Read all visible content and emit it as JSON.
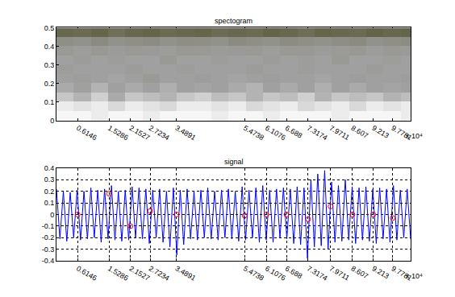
{
  "chart_data": [
    {
      "type": "heatmap",
      "title": "spectogram",
      "x": [
        0.25,
        0.75,
        1.25,
        1.75,
        2.25,
        2.75,
        3.25,
        3.75,
        4.25,
        4.75,
        5.25,
        5.75,
        6.25,
        6.75,
        7.25,
        7.75,
        8.25,
        8.75,
        9.25,
        9.75,
        10.25
      ],
      "y": [
        0.025,
        0.075,
        0.125,
        0.175,
        0.225,
        0.275,
        0.325,
        0.375,
        0.425,
        0.475
      ],
      "z": [
        [
          0.05,
          0.05,
          0.1,
          0.05,
          0.05,
          0.1,
          0.05,
          0.05,
          0.05,
          0.1,
          0.05,
          0.05,
          0.1,
          0.05,
          0.05,
          0.05,
          0.1,
          0.05,
          0.05,
          0.05,
          0.1
        ],
        [
          0.1,
          0.15,
          0.1,
          0.2,
          0.1,
          0.15,
          0.2,
          0.1,
          0.1,
          0.15,
          0.1,
          0.2,
          0.15,
          0.1,
          0.2,
          0.15,
          0.1,
          0.2,
          0.1,
          0.15,
          0.1
        ],
        [
          0.3,
          0.4,
          0.25,
          0.45,
          0.3,
          0.35,
          0.4,
          0.3,
          0.25,
          0.35,
          0.3,
          0.4,
          0.3,
          0.35,
          0.25,
          0.4,
          0.3,
          0.35,
          0.3,
          0.4,
          0.35
        ],
        [
          0.45,
          0.5,
          0.4,
          0.5,
          0.45,
          0.5,
          0.42,
          0.5,
          0.48,
          0.5,
          0.45,
          0.4,
          0.5,
          0.45,
          0.5,
          0.42,
          0.5,
          0.45,
          0.5,
          0.48,
          0.5
        ],
        [
          0.5,
          0.52,
          0.5,
          0.48,
          0.5,
          0.55,
          0.5,
          0.5,
          0.52,
          0.5,
          0.48,
          0.5,
          0.52,
          0.5,
          0.5,
          0.48,
          0.5,
          0.52,
          0.5,
          0.5,
          0.52
        ],
        [
          0.52,
          0.5,
          0.5,
          0.5,
          0.53,
          0.5,
          0.5,
          0.52,
          0.5,
          0.5,
          0.5,
          0.53,
          0.5,
          0.5,
          0.52,
          0.5,
          0.5,
          0.5,
          0.53,
          0.5,
          0.5
        ],
        [
          0.5,
          0.53,
          0.5,
          0.52,
          0.5,
          0.5,
          0.55,
          0.5,
          0.5,
          0.52,
          0.5,
          0.5,
          0.53,
          0.5,
          0.52,
          0.5,
          0.55,
          0.5,
          0.5,
          0.52,
          0.5
        ],
        [
          0.55,
          0.52,
          0.56,
          0.53,
          0.55,
          0.54,
          0.52,
          0.56,
          0.55,
          0.53,
          0.54,
          0.55,
          0.52,
          0.56,
          0.55,
          0.53,
          0.54,
          0.56,
          0.52,
          0.55,
          0.54
        ],
        [
          0.62,
          0.6,
          0.65,
          0.6,
          0.62,
          0.64,
          0.6,
          0.63,
          0.62,
          0.6,
          0.65,
          0.62,
          0.6,
          0.64,
          0.62,
          0.6,
          0.63,
          0.65,
          0.6,
          0.62,
          0.64
        ],
        [
          0.9,
          0.88,
          0.92,
          0.85,
          0.9,
          0.93,
          0.88,
          0.9,
          0.92,
          0.87,
          0.9,
          0.88,
          0.93,
          0.9,
          0.86,
          0.92,
          0.9,
          0.88,
          0.93,
          0.9,
          0.92
        ]
      ],
      "zlim": [
        0,
        1
      ],
      "colors": [
        "#ffffff",
        "#a0a0a0",
        "#5a5a3c"
      ],
      "xlim": [
        0,
        10.3
      ],
      "xticks": [
        0.6146,
        1.5286,
        2.1527,
        2.7234,
        3.4891,
        5.4738,
        6.1076,
        6.688,
        7.3174,
        7.9711,
        8.607,
        9.213,
        9.7781
      ],
      "ylim": [
        0,
        0.5
      ],
      "yticks": [
        0,
        0.1,
        0.2,
        0.3,
        0.4,
        0.5
      ],
      "annotations": [
        "x 10⁴"
      ],
      "grid": true
    },
    {
      "type": "line",
      "title": "signal",
      "x": [
        0,
        0.1,
        0.2,
        0.3,
        0.4,
        0.5,
        0.6,
        0.7,
        0.8,
        0.9,
        1,
        1.1,
        1.2,
        1.3,
        1.4,
        1.5,
        1.6,
        1.7,
        1.8,
        1.9,
        2,
        2.1,
        2.2,
        2.3,
        2.4,
        2.5,
        2.6,
        2.7,
        2.8,
        2.9,
        3,
        3.1,
        3.2,
        3.3,
        3.4,
        3.5,
        3.6,
        3.7,
        3.8,
        3.9,
        4,
        4.1,
        4.2,
        4.3,
        4.4,
        4.5,
        4.6,
        4.7,
        4.8,
        4.9,
        5,
        5.1,
        5.2,
        5.3,
        5.4,
        5.5,
        5.6,
        5.7,
        5.8,
        5.9,
        6,
        6.1,
        6.2,
        6.3,
        6.4,
        6.5,
        6.6,
        6.7,
        6.8,
        6.9,
        7,
        7.1,
        7.2,
        7.3,
        7.4,
        7.5,
        7.6,
        7.7,
        7.8,
        7.9,
        8,
        8.1,
        8.2,
        8.3,
        8.4,
        8.5,
        8.6,
        8.7,
        8.8,
        8.9,
        9,
        9.1,
        9.2,
        9.3,
        9.4,
        9.5,
        9.6,
        9.7,
        9.8,
        9.9,
        10,
        10.1,
        10.2,
        10.3
      ],
      "series": [
        {
          "color": "#0000ff",
          "type": "line",
          "values": [
            0.22,
            -0.21,
            0.2,
            -0.23,
            0.19,
            -0.2,
            0.21,
            -0.22,
            0.2,
            -0.21,
            0.23,
            -0.2,
            0.21,
            -0.24,
            0.22,
            -0.21,
            0.25,
            -0.22,
            0.2,
            -0.23,
            0.21,
            -0.22,
            0.24,
            -0.2,
            0.23,
            -0.21,
            0.22,
            -0.25,
            0.21,
            -0.2,
            0.22,
            -0.24,
            0.2,
            -0.28,
            0.23,
            -0.35,
            0.21,
            -0.26,
            0.22,
            -0.21,
            0.2,
            -0.22,
            0.21,
            -0.2,
            0.23,
            -0.21,
            0.2,
            -0.22,
            0.21,
            -0.2,
            0.22,
            -0.21,
            0.2,
            -0.23,
            0.24,
            -0.22,
            0.21,
            -0.2,
            0.23,
            -0.24,
            0.25,
            -0.22,
            0.21,
            -0.24,
            0.22,
            -0.2,
            0.23,
            -0.21,
            0.22,
            -0.25,
            0.24,
            -0.26,
            0.23,
            -0.38,
            0.3,
            -0.28,
            0.35,
            -0.27,
            0.38,
            -0.3,
            0.28,
            -0.24,
            0.25,
            -0.23,
            0.3,
            -0.22,
            0.24,
            -0.25,
            0.23,
            -0.22,
            0.24,
            -0.23,
            0.22,
            -0.25,
            0.23,
            -0.21,
            0.22,
            -0.24,
            0.25,
            -0.22,
            0.21,
            -0.2,
            0.22,
            -0.21
          ]
        },
        {
          "color": "#ff0000",
          "type": "scatter",
          "marker": "circle-open",
          "x": [
            0.6146,
            1.5286,
            2.1527,
            2.7234,
            3.4891,
            5.4738,
            6.1076,
            6.688,
            7.3174,
            7.9711,
            8.607,
            9.213,
            9.7781
          ],
          "values": [
            0,
            0.18,
            -0.1,
            0.03,
            0,
            -0.01,
            0,
            0,
            -0.04,
            0.07,
            0,
            0,
            -0.03
          ]
        }
      ],
      "xlim": [
        0,
        10.3
      ],
      "xticks": [
        0.6146,
        1.5286,
        2.1527,
        2.7234,
        3.4891,
        5.4738,
        6.1076,
        6.688,
        7.3174,
        7.9711,
        8.607,
        9.213,
        9.7781
      ],
      "ylim": [
        -0.4,
        0.4
      ],
      "yticks": [
        -0.4,
        -0.3,
        -0.2,
        -0.1,
        0,
        0.1,
        0.2,
        0.3,
        0.4
      ],
      "annotations": [
        "x 10⁴"
      ],
      "grid": true
    }
  ]
}
